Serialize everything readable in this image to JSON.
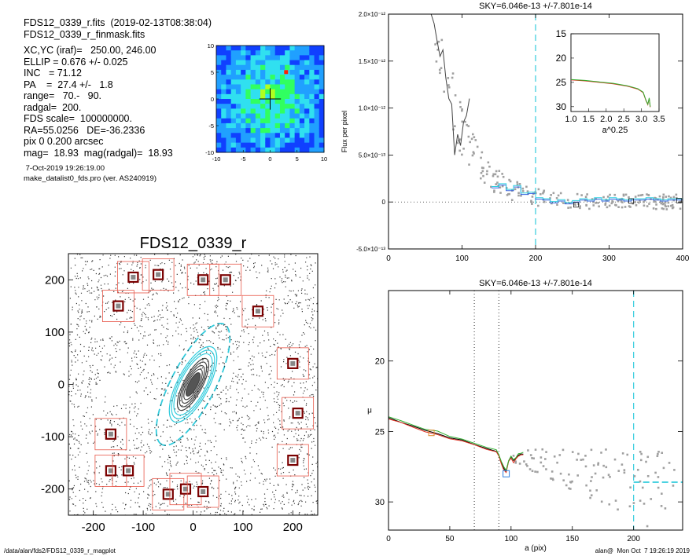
{
  "info": {
    "fits_line": "FDS12_0339_r.fits  (2019-02-13T08:38:04)",
    "mask_line": "FDS12_0339_r_finmask.fits",
    "lines": [
      "XC,YC (iraf)=   250.00, 246.00",
      "ELLIP = 0.676 +/- 0.025",
      "INC   = 71.12",
      "PA    =  27.4 +/-   1.8",
      "range=   70.-   90.",
      "radgal=  200.",
      "FDS scale=  100000000.",
      "RA=55.0256   DE=-36.2336",
      "pix 0 0.200 arcsec",
      "mag=  18.93  mag(radgal)=  18.93"
    ],
    "date": " 7-Oct-2019 19:26:19.00",
    "program": "make_datalist0_fds.pro (ver. AS240919)"
  },
  "footer": {
    "path": "/data/alan/fds2/FDS12_0339_r_magplot",
    "user": "alan@  Mon Oct  7 19:26:19 2019"
  },
  "colors": {
    "cyan": "#33ccdd",
    "red_box": "#e8584a",
    "points": "#a0a0a0"
  },
  "chart_data": [
    {
      "id": "thumbnail",
      "type": "heatmap",
      "xlim": [
        -10,
        10
      ],
      "ylim": [
        -10,
        10
      ],
      "xticks": [
        -10,
        -5,
        0,
        5,
        10
      ],
      "yticks": [
        -10,
        -5,
        0,
        5,
        10
      ],
      "colorscale": [
        "#1040ff",
        "#20a0ff",
        "#30e0f0",
        "#30ff60",
        "#b0ff20",
        "#ffe020",
        "#ff2000"
      ],
      "marker": "cross at center"
    },
    {
      "id": "image",
      "type": "scatter",
      "title": "FDS12_0339_r",
      "xlim": [
        -250,
        250
      ],
      "ylim": [
        -250,
        250
      ],
      "xticks": [
        -200,
        -100,
        0,
        100,
        200
      ],
      "yticks": [
        -200,
        -100,
        0,
        100,
        200
      ],
      "ellipse": {
        "center": [
          0,
          0
        ],
        "semi_major": 200,
        "ellip": 0.676,
        "pa": 27.4
      },
      "star_masks": [
        [
          -150,
          150
        ],
        [
          -120,
          205
        ],
        [
          -70,
          210
        ],
        [
          20,
          200
        ],
        [
          -165,
          -165
        ],
        [
          65,
          200
        ],
        [
          130,
          140
        ],
        [
          200,
          40
        ],
        [
          210,
          -55
        ],
        [
          -165,
          -95
        ],
        [
          -130,
          -165
        ],
        [
          -50,
          -210
        ],
        [
          -15,
          -200
        ],
        [
          20,
          -205
        ],
        [
          200,
          -145
        ]
      ]
    },
    {
      "id": "flux",
      "type": "line",
      "title": "SKY=6.046e-13 +/-7.801e-14",
      "ylabel": "Flux per pixel",
      "xlim": [
        0,
        400
      ],
      "ylim": [
        -5e-13,
        2e-12
      ],
      "xticks": [
        0,
        100,
        200,
        300,
        400
      ],
      "yticks": [
        -5e-13,
        0,
        5e-13,
        1e-12,
        1.5e-12,
        2e-12
      ],
      "yticklabels": [
        "-5.0×10⁻¹³",
        "0",
        "5.0×10⁻¹³",
        "1.0×10⁻¹²",
        "1.5×10⁻¹²",
        "2.0×10⁻¹²"
      ],
      "vline": 200,
      "profile_x": [
        58,
        62,
        66,
        70,
        74,
        78,
        82,
        86,
        90,
        94,
        98,
        102,
        106,
        110
      ],
      "profile_y": [
        2e-12,
        1.9e-12,
        1.72e-12,
        1.55e-12,
        1.62e-12,
        1.32e-12,
        1.1e-12,
        1.04e-12,
        5e-13,
        7.2e-13,
        6e-13,
        8.5e-13,
        9.2e-13,
        1.1e-12
      ],
      "binned_x": [
        140,
        150,
        160,
        170,
        180,
        190,
        200,
        210,
        220,
        230,
        240,
        250,
        260,
        270,
        280,
        290,
        300,
        310,
        320,
        330,
        340,
        350,
        360,
        370,
        380,
        390,
        400
      ],
      "binned_y": [
        1.5e-13,
        1.8e-13,
        1.2e-13,
        1.6e-13,
        8e-14,
        9e-14,
        3e-14,
        2e-14,
        -1e-14,
        1e-14,
        -2e-14,
        0,
        2e-14,
        1e-14,
        3e-14,
        1e-14,
        3e-14,
        2e-14,
        1e-14,
        2e-14,
        2e-14,
        3e-14,
        2e-14,
        1e-14,
        2e-14,
        2e-14,
        4e-14
      ],
      "inset": {
        "xlabel": "a^0.25",
        "xlim": [
          1.0,
          3.5
        ],
        "ylim": [
          31,
          15
        ],
        "xticks": [
          1.0,
          1.5,
          2.0,
          2.5,
          3.0,
          3.5
        ],
        "yticks": [
          15,
          20,
          25,
          30
        ],
        "curve_x": [
          1.0,
          1.4,
          1.8,
          2.2,
          2.6,
          2.9,
          3.05,
          3.12,
          3.18,
          3.22,
          3.25
        ],
        "curve_y": [
          24.4,
          24.6,
          24.9,
          25.2,
          25.7,
          26.3,
          27.0,
          28.5,
          29.5,
          28.2,
          30.0
        ]
      }
    },
    {
      "id": "mu",
      "type": "line",
      "title": "SKY=6.046e-13 +/-7.801e-14",
      "xlabel": "a (pix)",
      "ylabel": "μ",
      "xlim": [
        0,
        240
      ],
      "ylim": [
        32,
        15
      ],
      "xticks": [
        0,
        50,
        100,
        150,
        200
      ],
      "yticks": [
        20,
        25,
        30
      ],
      "vlines_dotted": [
        70,
        90
      ],
      "vline_dashed": 200,
      "sky_level": 28.6,
      "profile_x": [
        0,
        10,
        20,
        30,
        40,
        50,
        60,
        70,
        80,
        88,
        90,
        92,
        94,
        96,
        98,
        100,
        102,
        104,
        106,
        108,
        110
      ],
      "profile_y": [
        24.0,
        24.3,
        24.6,
        24.9,
        25.1,
        25.4,
        25.6,
        25.9,
        26.2,
        26.4,
        26.7,
        27.2,
        27.6,
        27.8,
        27.1,
        26.8,
        27.1,
        26.9,
        26.7,
        26.6,
        26.6
      ]
    }
  ]
}
